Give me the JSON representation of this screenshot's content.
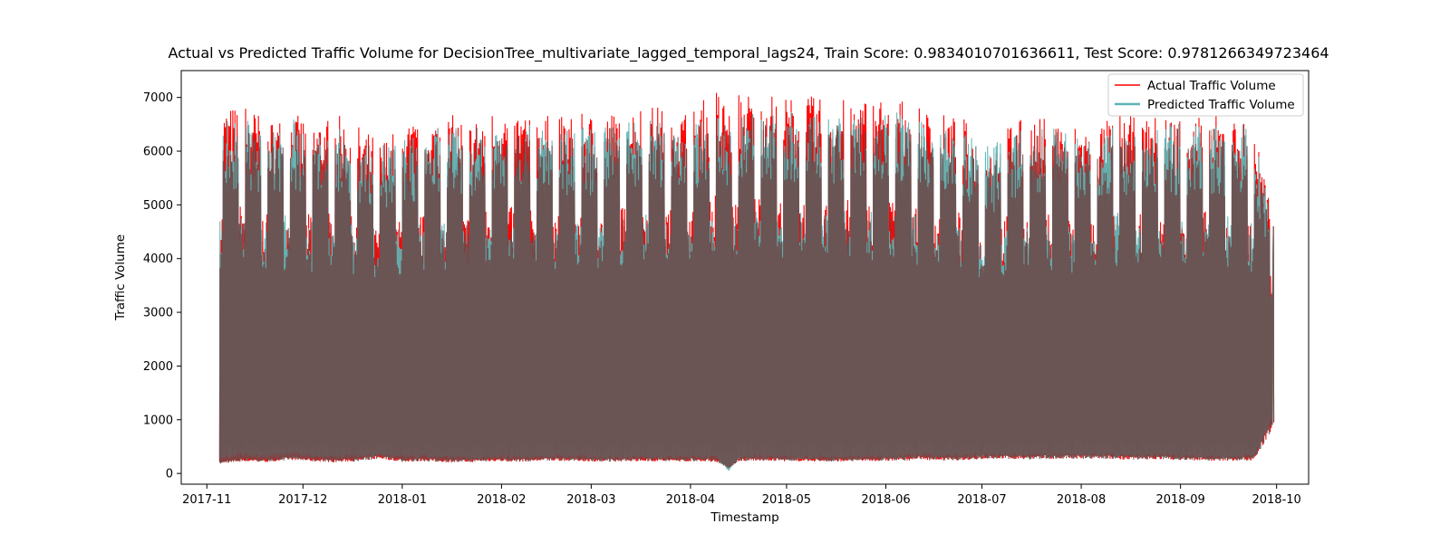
{
  "chart_data": {
    "type": "line",
    "title": "Actual vs Predicted Traffic Volume for DecisionTree_multivariate_lagged_temporal_lags24, Train Score: 0.9834010701636611, Test Score: 0.9781266349723464",
    "xlabel": "Timestamp",
    "ylabel": "Traffic Volume",
    "xlim": [
      "2017-10-24",
      "2018-10-11"
    ],
    "ylim": [
      -200,
      7500
    ],
    "x_ticks": [
      "2017-11",
      "2017-12",
      "2018-01",
      "2018-02",
      "2018-03",
      "2018-04",
      "2018-05",
      "2018-06",
      "2018-07",
      "2018-08",
      "2018-09",
      "2018-10"
    ],
    "y_ticks": [
      0,
      1000,
      2000,
      3000,
      4000,
      5000,
      6000,
      7000
    ],
    "legend_position": "top-right",
    "grid": false,
    "series": [
      {
        "name": "Actual Traffic Volume",
        "color": "#ff0000",
        "x": [
          "2017-11-05",
          "2017-11-13",
          "2017-11-20",
          "2017-11-27",
          "2017-12-04",
          "2017-12-11",
          "2017-12-18",
          "2017-12-25",
          "2018-01-01",
          "2018-01-08",
          "2018-01-15",
          "2018-01-22",
          "2018-01-29",
          "2018-02-05",
          "2018-02-12",
          "2018-02-19",
          "2018-02-26",
          "2018-03-05",
          "2018-03-12",
          "2018-03-19",
          "2018-03-26",
          "2018-04-02",
          "2018-04-09",
          "2018-04-13",
          "2018-04-16",
          "2018-04-23",
          "2018-04-30",
          "2018-05-07",
          "2018-05-14",
          "2018-05-21",
          "2018-05-28",
          "2018-06-04",
          "2018-06-11",
          "2018-06-18",
          "2018-06-25",
          "2018-07-02",
          "2018-07-09",
          "2018-07-16",
          "2018-07-23",
          "2018-07-30",
          "2018-08-06",
          "2018-08-13",
          "2018-08-20",
          "2018-08-27",
          "2018-09-03",
          "2018-09-10",
          "2018-09-17",
          "2018-09-24",
          "2018-09-30"
        ],
        "high": [
          6800,
          6900,
          6600,
          6700,
          6600,
          6700,
          6500,
          6200,
          6500,
          6600,
          6700,
          6600,
          6800,
          6800,
          6700,
          6650,
          6700,
          6700,
          6850,
          6900,
          6750,
          6800,
          7200,
          6850,
          7100,
          7150,
          7000,
          7050,
          6950,
          7000,
          7000,
          7050,
          6800,
          6700,
          6650,
          6000,
          6600,
          6600,
          6650,
          6500,
          6500,
          6700,
          6600,
          6700,
          6700,
          6700,
          6600,
          6550,
          4600
        ],
        "low": [
          200,
          250,
          230,
          280,
          250,
          230,
          250,
          300,
          240,
          250,
          230,
          230,
          250,
          240,
          250,
          260,
          250,
          240,
          250,
          250,
          240,
          250,
          240,
          100,
          250,
          260,
          250,
          250,
          240,
          250,
          250,
          260,
          280,
          270,
          270,
          300,
          300,
          290,
          300,
          300,
          300,
          290,
          280,
          290,
          270,
          260,
          260,
          270,
          950
        ]
      },
      {
        "name": "Predicted Traffic Volume",
        "color": "#5fb3b3",
        "x": [
          "2017-11-05",
          "2017-11-13",
          "2017-11-20",
          "2017-11-27",
          "2017-12-04",
          "2017-12-11",
          "2017-12-18",
          "2017-12-25",
          "2018-01-01",
          "2018-01-08",
          "2018-01-15",
          "2018-01-22",
          "2018-01-29",
          "2018-02-05",
          "2018-02-12",
          "2018-02-19",
          "2018-02-26",
          "2018-03-05",
          "2018-03-12",
          "2018-03-19",
          "2018-03-26",
          "2018-04-02",
          "2018-04-09",
          "2018-04-13",
          "2018-04-16",
          "2018-04-23",
          "2018-04-30",
          "2018-05-07",
          "2018-05-14",
          "2018-05-21",
          "2018-05-28",
          "2018-06-04",
          "2018-06-11",
          "2018-06-18",
          "2018-06-25",
          "2018-07-02",
          "2018-07-09",
          "2018-07-16",
          "2018-07-23",
          "2018-07-30",
          "2018-08-06",
          "2018-08-13",
          "2018-08-20",
          "2018-08-27",
          "2018-09-03",
          "2018-09-10",
          "2018-09-17",
          "2018-09-24",
          "2018-09-30"
        ],
        "high": [
          6700,
          6750,
          6500,
          6800,
          6500,
          6600,
          6400,
          6300,
          6400,
          6500,
          6600,
          6500,
          6700,
          6650,
          6600,
          6500,
          6600,
          6600,
          6700,
          6750,
          6600,
          6650,
          6800,
          6700,
          6850,
          6900,
          6850,
          6900,
          6800,
          6850,
          6850,
          6900,
          6700,
          6600,
          6500,
          6200,
          6500,
          6500,
          6600,
          6450,
          6450,
          6800,
          6550,
          6650,
          6650,
          6650,
          6800,
          6500,
          4550
        ],
        "low": [
          300,
          350,
          300,
          350,
          320,
          300,
          320,
          330,
          300,
          300,
          290,
          280,
          300,
          300,
          300,
          310,
          300,
          290,
          300,
          300,
          290,
          300,
          290,
          50,
          300,
          310,
          300,
          300,
          290,
          300,
          300,
          310,
          330,
          320,
          320,
          330,
          330,
          330,
          330,
          330,
          330,
          330,
          320,
          330,
          310,
          300,
          300,
          310,
          1000
        ]
      }
    ]
  }
}
